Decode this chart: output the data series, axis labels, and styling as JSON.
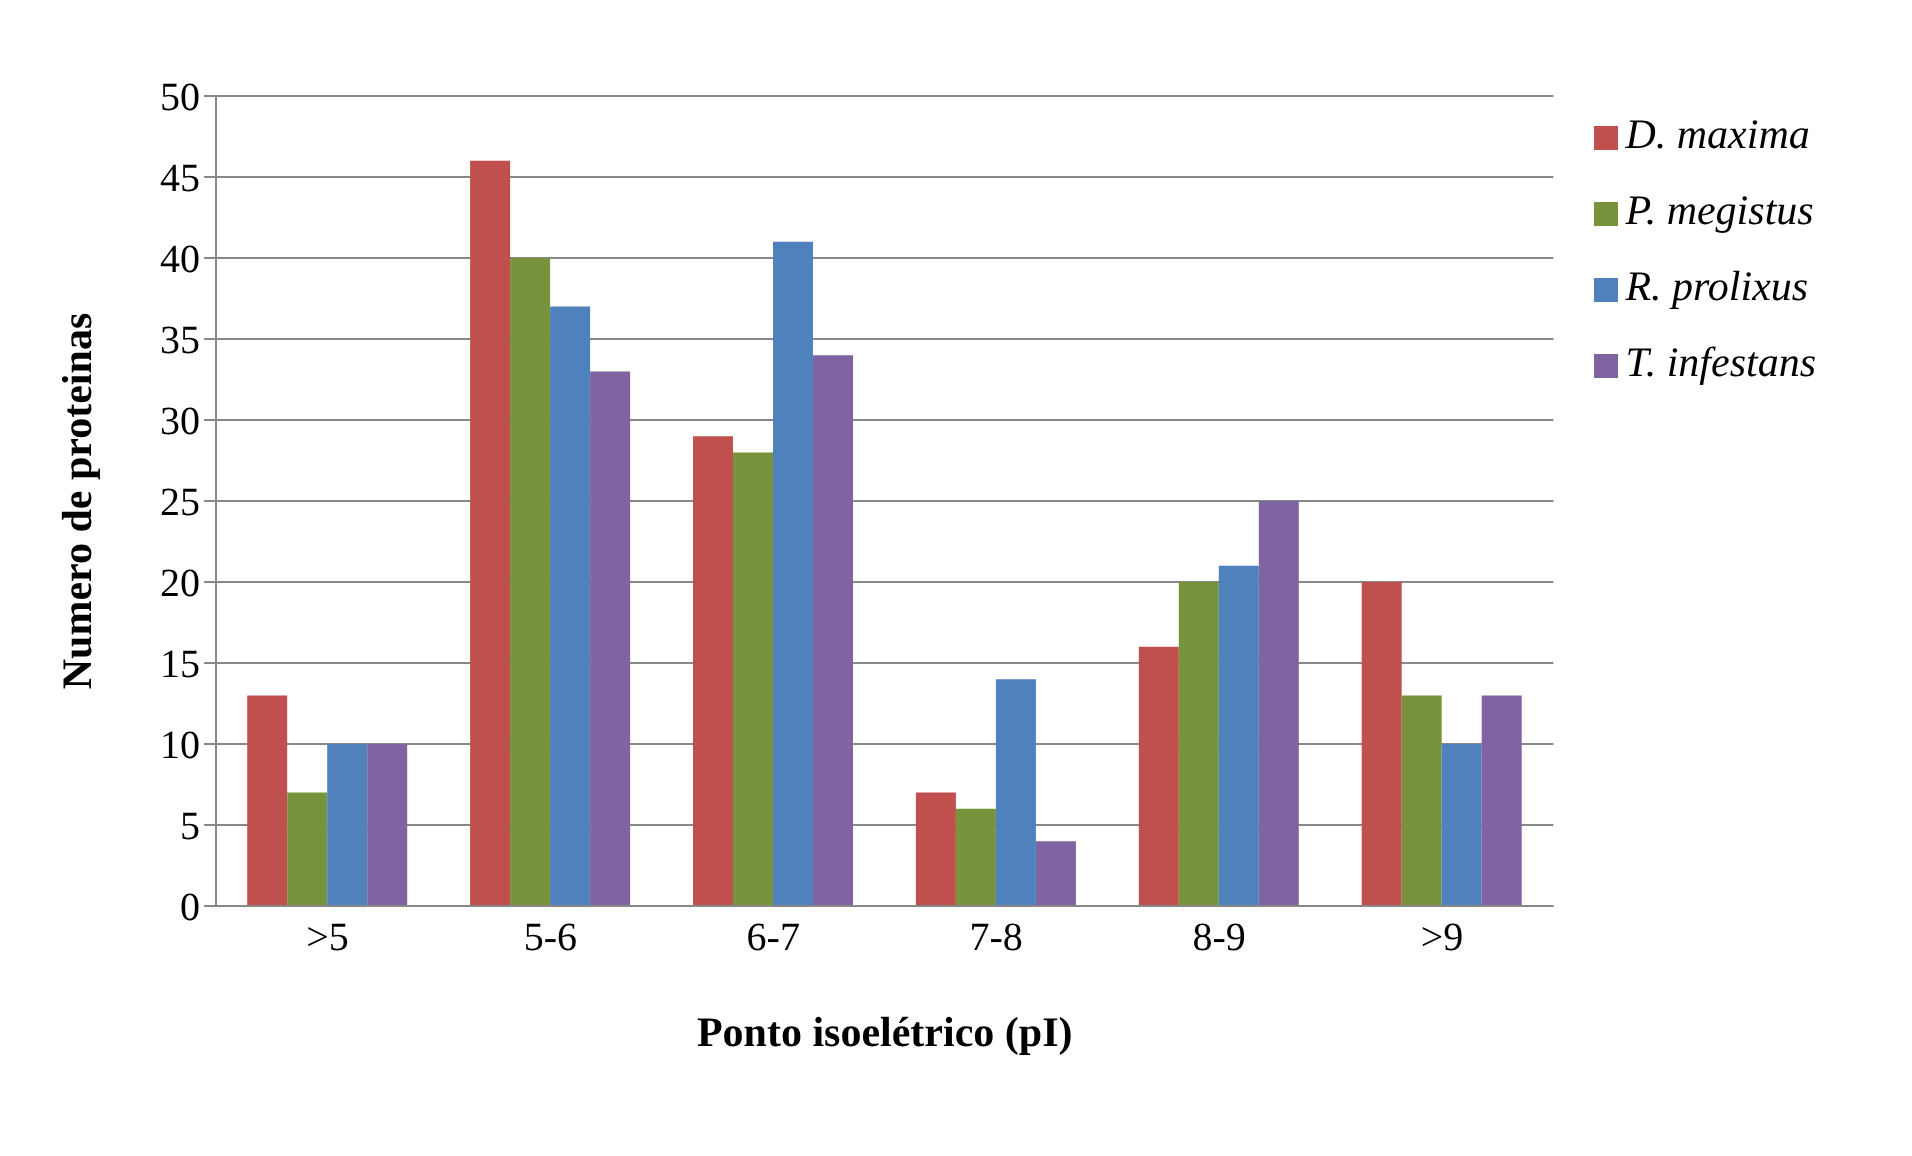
{
  "chart_data": {
    "type": "bar",
    "xlabel": "Ponto isoelétrico (pI)",
    "ylabel": "Numero de proteinas",
    "categories": [
      ">5",
      "5-6",
      "6-7",
      "7-8",
      "8-9",
      ">9"
    ],
    "series": [
      {
        "name": "D. maxima",
        "color": "#c0504d",
        "values": [
          13,
          46,
          29,
          7,
          16,
          20
        ]
      },
      {
        "name": "P. megistus",
        "color": "#77933c",
        "values": [
          7,
          40,
          28,
          6,
          20,
          13
        ]
      },
      {
        "name": "R. prolixus",
        "color": "#4f81bd",
        "values": [
          10,
          37,
          41,
          14,
          21,
          10
        ]
      },
      {
        "name": "T. infestans",
        "color": "#8064a2",
        "values": [
          10,
          33,
          34,
          4,
          25,
          13
        ]
      }
    ],
    "ylim": [
      0,
      50
    ],
    "yticks": [
      0,
      5,
      10,
      15,
      20,
      25,
      30,
      35,
      40,
      45,
      50
    ],
    "grid": "y",
    "legend": "top right"
  }
}
